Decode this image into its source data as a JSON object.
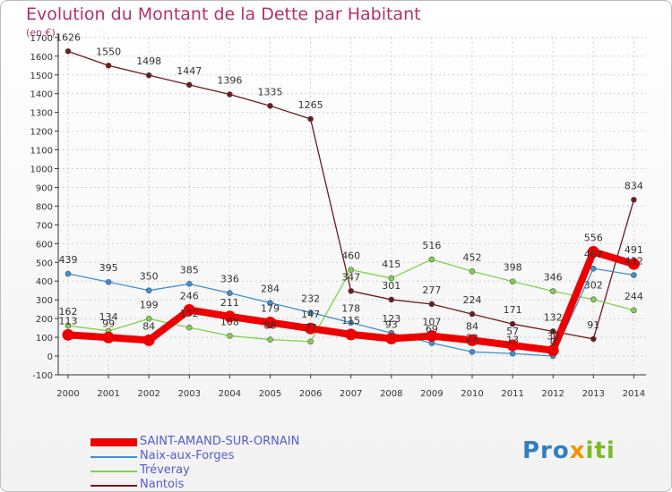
{
  "title": "Evolution du Montant de la Dette par Habitant",
  "unit": "(en €)",
  "logo": {
    "part1": "Pro",
    "part2": "x",
    "part3": "iti"
  },
  "chart_data": {
    "type": "line",
    "title": "Evolution du Montant de la Dette par Habitant",
    "subtitle": "(en €)",
    "x": [
      "2000",
      "2001",
      "2002",
      "2003",
      "2004",
      "2005",
      "2006",
      "2007",
      "2008",
      "2009",
      "2010",
      "2011",
      "2012",
      "2013",
      "2014"
    ],
    "ylim": [
      -100,
      1700
    ],
    "yticks": [
      -100,
      0,
      100,
      200,
      300,
      400,
      500,
      600,
      700,
      800,
      900,
      1000,
      1100,
      1200,
      1300,
      1400,
      1500,
      1600,
      1700
    ],
    "grid": true,
    "legend_position": "bottom-left",
    "series": [
      {
        "name": "SAINT-AMAND-SUR-ORNAIN",
        "color": "#ee0000",
        "values": [
          113,
          99,
          84,
          246,
          211,
          179,
          147,
          115,
          93,
          107,
          84,
          57,
          30,
          556,
          491
        ],
        "labels": [
          "113",
          "99",
          "84",
          "246",
          "211",
          "179",
          "147",
          "115",
          "93",
          "107",
          "84",
          "57",
          "30",
          "556",
          "491"
        ]
      },
      {
        "name": "Naix-aux-Forges",
        "color": "#3d8fd1",
        "values": [
          439,
          395,
          350,
          385,
          336,
          284,
          232,
          178,
          123,
          69,
          22,
          13,
          0,
          467,
          432
        ],
        "labels": [
          "439",
          "395",
          "350",
          "385",
          "336",
          "284",
          "232",
          "178",
          "123",
          "69",
          "22",
          "13",
          "0",
          "467",
          "432"
        ]
      },
      {
        "name": "Tréveray",
        "color": "#7fd24b",
        "values": [
          162,
          134,
          199,
          152,
          108,
          88,
          77,
          460,
          415,
          516,
          452,
          398,
          346,
          302,
          244
        ],
        "labels": [
          "162",
          "134",
          "199",
          "152",
          "108",
          "88",
          "77",
          "460",
          "415",
          "516",
          "452",
          "398",
          "346",
          "302",
          "244"
        ]
      },
      {
        "name": "Nantois",
        "color": "#6b1a1f",
        "values": [
          1626,
          1550,
          1498,
          1447,
          1396,
          1335,
          1265,
          347,
          301,
          277,
          224,
          171,
          132,
          91,
          834
        ],
        "labels": [
          "1626",
          "1550",
          "1498",
          "1447",
          "1396",
          "1335",
          "1265",
          "347",
          "301",
          "277",
          "224",
          "171",
          "132",
          "91",
          "834"
        ]
      }
    ]
  }
}
